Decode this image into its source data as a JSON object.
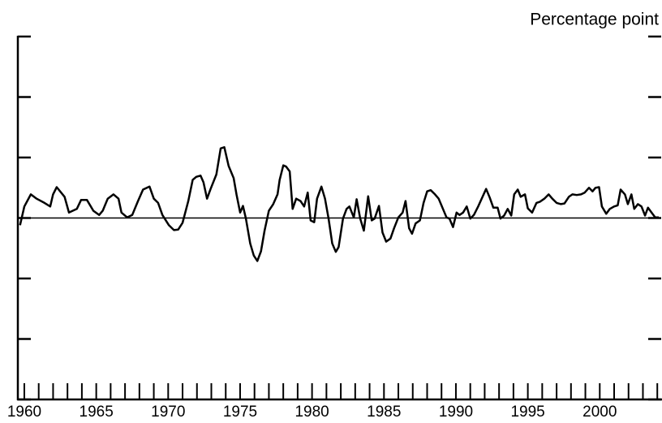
{
  "chart_data": {
    "type": "line",
    "y_axis_label": "Percentage point",
    "xlim": [
      1959.55,
      2004.27
    ],
    "xticks": [
      1960,
      1965,
      1970,
      1975,
      1980,
      1985,
      1990,
      1995,
      2000
    ],
    "xminor_ticks": [
      1960,
      1961,
      1962,
      1963,
      1964,
      1965,
      1966,
      1967,
      1968,
      1969,
      1970,
      1971,
      1972,
      1973,
      1974,
      1975,
      1976,
      1977,
      1978,
      1979,
      1980,
      1981,
      1982,
      1983,
      1984,
      1985,
      1986,
      1987,
      1988,
      1989,
      1990,
      1991,
      1992,
      1993,
      1994,
      1995,
      1996,
      1997,
      1998,
      1999,
      2000,
      2001,
      2002,
      2003,
      2004
    ],
    "ylim": [
      -3,
      3
    ],
    "yticks": [
      -3,
      -2,
      -1,
      0,
      1,
      2,
      3
    ],
    "zero_line": true,
    "series": [
      {
        "color": "#000000",
        "x": [
          1959.7,
          1960.0,
          1960.45,
          1960.85,
          1961.4,
          1961.8,
          1962.0,
          1962.25,
          1962.8,
          1963.1,
          1963.65,
          1963.95,
          1964.35,
          1964.8,
          1965.2,
          1965.45,
          1965.8,
          1966.2,
          1966.55,
          1966.75,
          1967.15,
          1967.5,
          1967.9,
          1968.25,
          1968.7,
          1969.0,
          1969.3,
          1969.6,
          1970.05,
          1970.4,
          1970.7,
          1971.0,
          1971.4,
          1971.7,
          1971.95,
          1972.25,
          1972.45,
          1972.7,
          1972.95,
          1973.35,
          1973.65,
          1973.9,
          1974.2,
          1974.55,
          1974.75,
          1975.0,
          1975.2,
          1975.4,
          1975.7,
          1975.95,
          1976.2,
          1976.45,
          1976.7,
          1977.0,
          1977.3,
          1977.6,
          1977.75,
          1978.0,
          1978.2,
          1978.45,
          1978.65,
          1978.9,
          1979.2,
          1979.45,
          1979.7,
          1979.9,
          1980.15,
          1980.35,
          1980.65,
          1980.9,
          1981.15,
          1981.4,
          1981.65,
          1981.85,
          1982.15,
          1982.4,
          1982.6,
          1982.9,
          1983.1,
          1983.35,
          1983.6,
          1983.9,
          1984.15,
          1984.35,
          1984.65,
          1984.9,
          1985.15,
          1985.45,
          1985.7,
          1986.0,
          1986.3,
          1986.5,
          1986.75,
          1986.95,
          1987.2,
          1987.5,
          1987.75,
          1988.0,
          1988.25,
          1988.55,
          1988.8,
          1989.1,
          1989.35,
          1989.55,
          1989.8,
          1990.05,
          1990.25,
          1990.5,
          1990.75,
          1991.0,
          1991.25,
          1991.55,
          1991.85,
          1992.1,
          1992.35,
          1992.6,
          1992.9,
          1993.1,
          1993.35,
          1993.6,
          1993.85,
          1994.05,
          1994.3,
          1994.5,
          1994.8,
          1995.0,
          1995.3,
          1995.6,
          1995.85,
          1996.15,
          1996.45,
          1996.7,
          1997.0,
          1997.3,
          1997.55,
          1997.85,
          1998.1,
          1998.4,
          1998.7,
          1998.95,
          1999.25,
          1999.5,
          1999.7,
          1999.95,
          2000.15,
          2000.45,
          2000.7,
          2001.0,
          2001.25,
          2001.45,
          2001.75,
          2001.95,
          2002.2,
          2002.4,
          2002.65,
          2002.9,
          2003.15,
          2003.35,
          2003.6,
          2003.85,
          2004.1
        ],
        "values": [
          -0.12,
          0.19,
          0.39,
          0.32,
          0.25,
          0.19,
          0.39,
          0.51,
          0.35,
          0.09,
          0.15,
          0.3,
          0.3,
          0.12,
          0.05,
          0.12,
          0.32,
          0.39,
          0.32,
          0.09,
          0.01,
          0.05,
          0.28,
          0.47,
          0.52,
          0.32,
          0.25,
          0.05,
          -0.12,
          -0.2,
          -0.19,
          -0.08,
          0.28,
          0.63,
          0.68,
          0.7,
          0.59,
          0.32,
          0.48,
          0.72,
          1.15,
          1.17,
          0.86,
          0.66,
          0.39,
          0.09,
          0.2,
          -0.01,
          -0.42,
          -0.62,
          -0.71,
          -0.55,
          -0.21,
          0.12,
          0.23,
          0.39,
          0.63,
          0.87,
          0.85,
          0.77,
          0.15,
          0.32,
          0.28,
          0.19,
          0.42,
          -0.04,
          -0.07,
          0.32,
          0.52,
          0.32,
          -0.01,
          -0.42,
          -0.56,
          -0.48,
          -0.01,
          0.15,
          0.19,
          0.01,
          0.31,
          -0.01,
          -0.21,
          0.36,
          -0.04,
          -0.01,
          0.2,
          -0.24,
          -0.39,
          -0.34,
          -0.17,
          0.01,
          0.09,
          0.28,
          -0.17,
          -0.26,
          -0.09,
          -0.04,
          0.25,
          0.44,
          0.46,
          0.39,
          0.32,
          0.15,
          0.01,
          -0.01,
          -0.15,
          0.09,
          0.05,
          0.09,
          0.19,
          -0.01,
          0.05,
          0.19,
          0.35,
          0.48,
          0.34,
          0.17,
          0.17,
          -0.01,
          0.04,
          0.15,
          0.04,
          0.39,
          0.47,
          0.35,
          0.39,
          0.16,
          0.09,
          0.25,
          0.27,
          0.32,
          0.39,
          0.32,
          0.25,
          0.23,
          0.24,
          0.35,
          0.39,
          0.38,
          0.39,
          0.42,
          0.5,
          0.44,
          0.5,
          0.51,
          0.19,
          0.07,
          0.15,
          0.19,
          0.21,
          0.47,
          0.39,
          0.23,
          0.39,
          0.15,
          0.23,
          0.19,
          0.04,
          0.17,
          0.09,
          0.01,
          0.01
        ]
      }
    ]
  }
}
